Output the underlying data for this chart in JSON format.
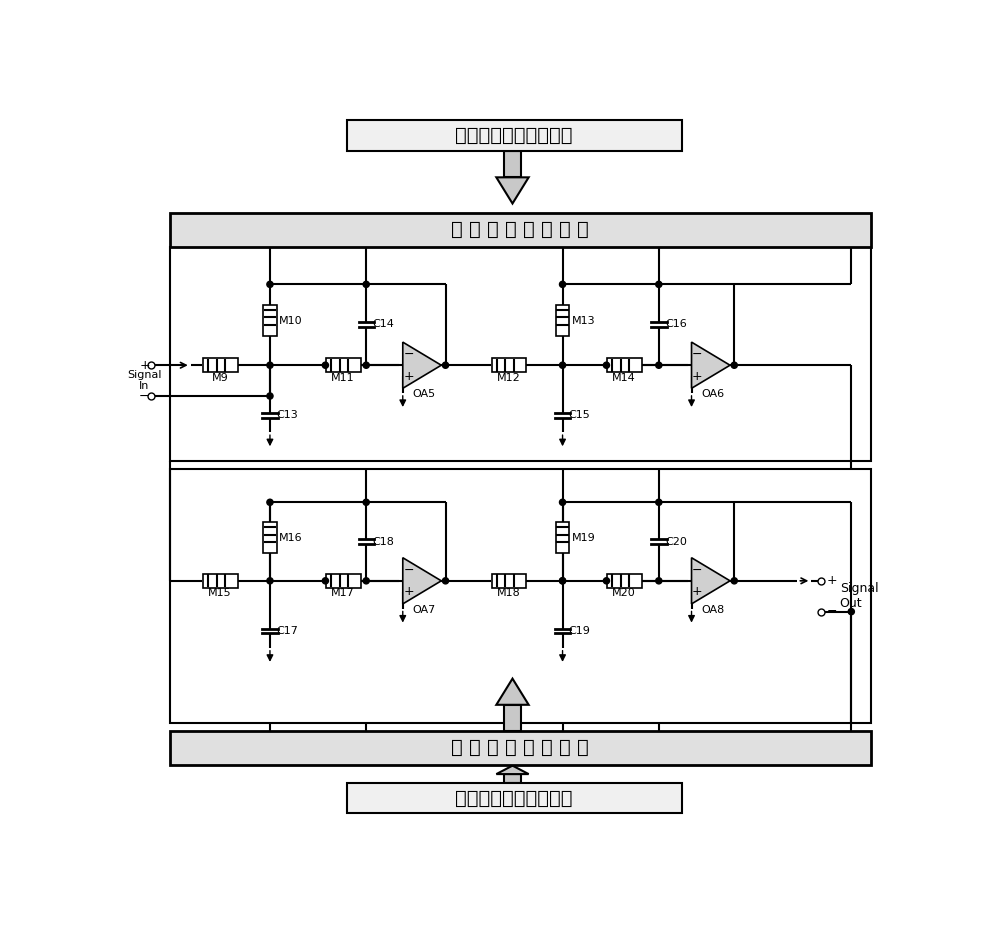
{
  "top_box_text": "占空比可调脉冲信号源",
  "bottom_box_text": "占空比可调脉冲信号源",
  "top_mem_box_text": "忆 阻 阻 值 调 节 电 路",
  "bottom_mem_box_text": "忆 阻 阻 值 调 节 电 路",
  "signal_in_plus": "+",
  "signal_in_minus": "-",
  "signal_in_label": "Signal\nIn",
  "signal_out_label": "Signal\nOut",
  "signal_out_plus": "+",
  "signal_out_minus": "-",
  "bg_color": "#ffffff",
  "box_fill": "#f0f0f0",
  "mem_box_fill": "#e0e0e0",
  "arrow_fill": "#c8c8c8",
  "opamp_fill": "#d0d0d0",
  "components": {
    "top_row": [
      "M9",
      "M10",
      "M11",
      "C13",
      "C14",
      "OA5",
      "M12",
      "M13",
      "M14",
      "C15",
      "C16",
      "OA6"
    ],
    "bot_row": [
      "M15",
      "M16",
      "M17",
      "C17",
      "C18",
      "OA7",
      "M18",
      "M19",
      "M20",
      "C19",
      "C20",
      "OA8"
    ]
  }
}
